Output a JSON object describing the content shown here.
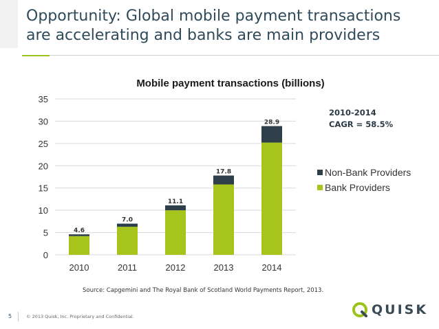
{
  "slide": {
    "title": "Opportunity:  Global mobile payment transactions are accelerating and banks are main providers",
    "cagr_line1": "2010-2014",
    "cagr_line2": "CAGR = 58.5%",
    "source": "Source:  Capgemini and The Royal Bank of Scotland World Payments Report, 2013.",
    "page_number": "5",
    "copyright": "© 2013 Quisk, Inc. Proprietary and Confidential.",
    "logo_text": "QUISK"
  },
  "colors": {
    "bank": "#a6c41c",
    "non_bank": "#2e3f49",
    "grid": "#d9d9d9",
    "title": "#2f4a5a"
  },
  "chart_data": {
    "type": "bar",
    "stacked": true,
    "title": "Mobile payment transactions (billions)",
    "xlabel": "",
    "ylabel": "",
    "categories": [
      "2010",
      "2011",
      "2012",
      "2013",
      "2014"
    ],
    "series": [
      {
        "name": "Bank Providers",
        "values": [
          4.2,
          6.3,
          10.0,
          15.8,
          25.2
        ]
      },
      {
        "name": "Non-Bank Providers",
        "values": [
          0.4,
          0.7,
          1.1,
          2.0,
          3.7
        ]
      }
    ],
    "totals": [
      "4.6",
      "7.0",
      "11.1",
      "17.8",
      "28.9"
    ],
    "ylim": [
      0,
      35
    ],
    "yticks": [
      "0",
      "5",
      "10",
      "15",
      "20",
      "25",
      "30",
      "35"
    ],
    "grid": true,
    "legend_position": "right"
  }
}
